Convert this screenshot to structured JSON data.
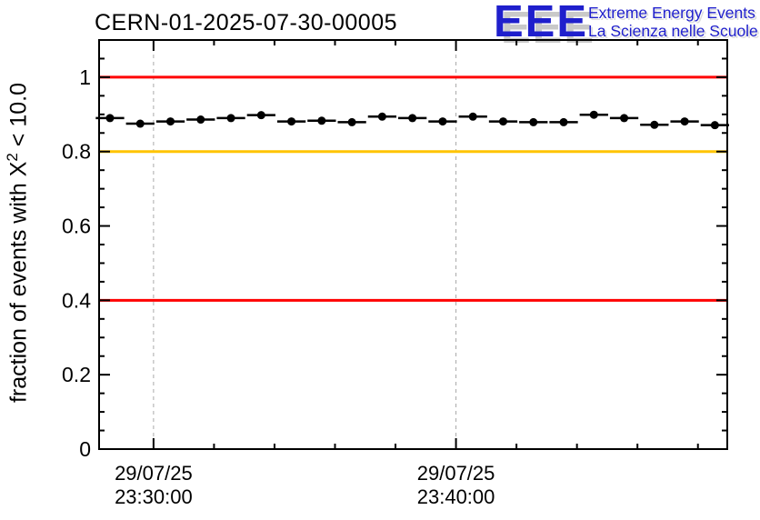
{
  "header": {
    "title": "CERN-01-2025-07-30-00005"
  },
  "logo": {
    "acronym": "EEE",
    "line1": "Extreme Energy Events",
    "line2": "La Scienza nelle Scuole",
    "text_color": "#1f1fcc",
    "shadow_color": "#c9c9c9"
  },
  "chart_data": {
    "type": "scatter",
    "title": "CERN-01-2025-07-30-00005",
    "xlabel": "",
    "ylabel": "fraction of events with X² < 10.0",
    "ylabel_prefix": "fraction of events with X",
    "ylabel_sup": "2",
    "ylabel_suffix": " < 10.0",
    "ylim": [
      0,
      1.1
    ],
    "y_major_ticks": [
      0,
      0.2,
      0.4,
      0.6,
      0.8,
      1.0
    ],
    "y_tick_labels": [
      "0",
      "0.2",
      "0.4",
      "0.6",
      "0.8",
      "1"
    ],
    "y_minor_step": 0.05,
    "x_axis": {
      "range_minutes": [
        -1.8,
        18.97
      ],
      "major_tick_minutes": [
        0,
        10
      ],
      "minor_step_minutes": 2,
      "gridline_minutes": [
        0,
        10
      ],
      "tick_labels": [
        {
          "date": "29/07/25",
          "time": "23:30:00",
          "minute": 0
        },
        {
          "date": "29/07/25",
          "time": "23:40:00",
          "minute": 10
        }
      ]
    },
    "grid": {
      "style": "dashed",
      "color": "#a8a8a8",
      "axis": "x-only"
    },
    "reference_lines": [
      {
        "y": 1.0,
        "color": "#ff0000"
      },
      {
        "y": 0.8,
        "color": "#ffc400"
      },
      {
        "y": 0.4,
        "color": "#ff0000"
      }
    ],
    "series": [
      {
        "marker": "filled-circle",
        "color": "#000000",
        "first_bin_center_minute": -1.44,
        "bin_step_minutes": 1,
        "bin_half_width_minutes": 0.47,
        "values": [
          0.89,
          0.875,
          0.881,
          0.886,
          0.89,
          0.898,
          0.881,
          0.883,
          0.879,
          0.894,
          0.89,
          0.881,
          0.894,
          0.881,
          0.879,
          0.879,
          0.899,
          0.89,
          0.872,
          0.881,
          0.871
        ]
      }
    ],
    "frame_color": "#000000",
    "background_color": "#ffffff",
    "legend": "none"
  }
}
